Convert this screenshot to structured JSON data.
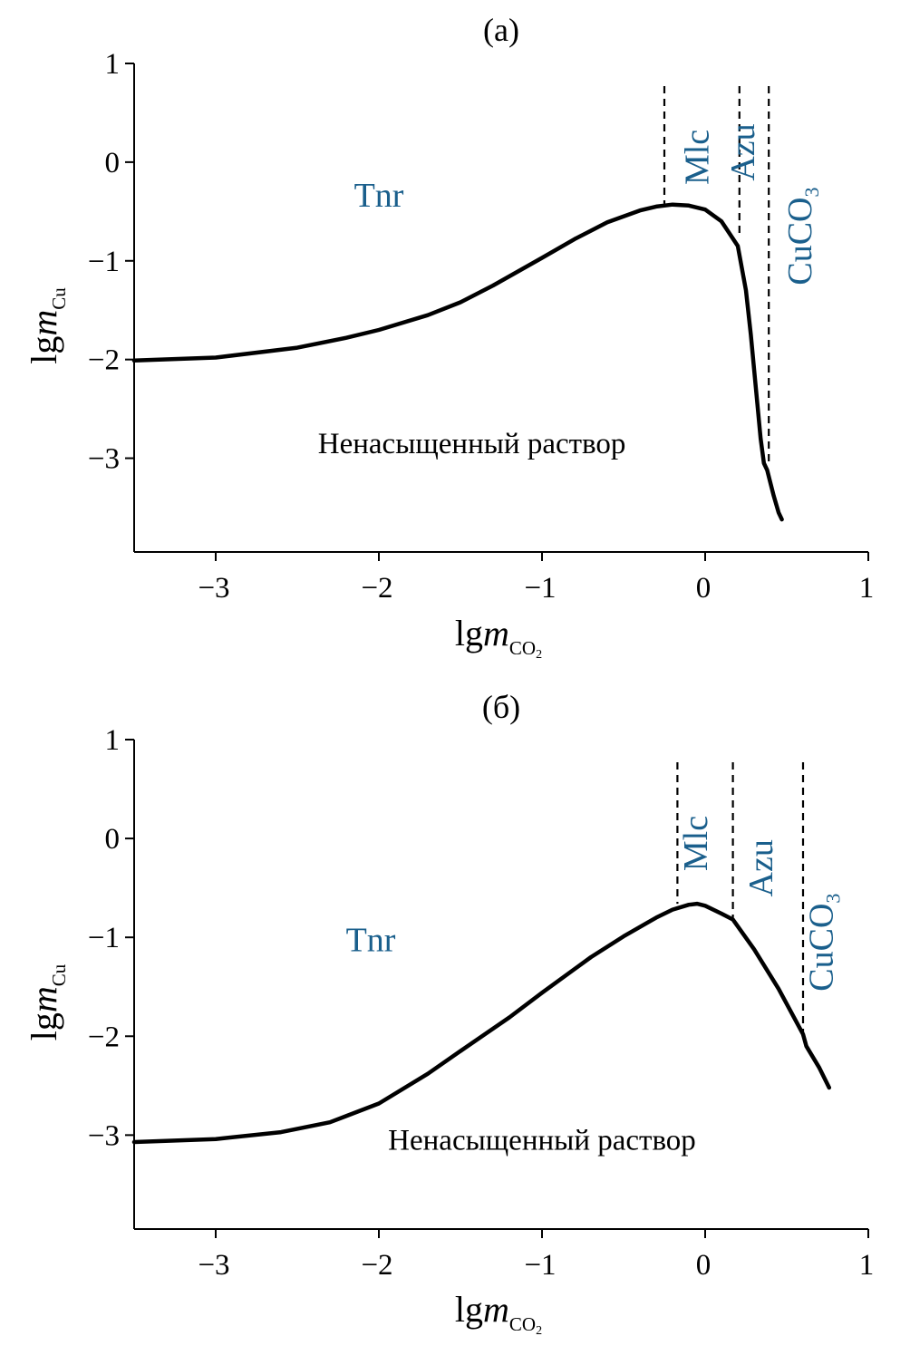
{
  "colors": {
    "curve": "#000000",
    "region_label": "#1a5f8c",
    "axis": "#000000"
  },
  "chart_data": [
    {
      "type": "line",
      "title": "(а)",
      "xlabel": {
        "main": "lg",
        "italic": "m",
        "sub": "CO",
        "subsub": "2"
      },
      "ylabel": {
        "main": "lg",
        "italic": "m",
        "sub": "Cu"
      },
      "xlim": [
        -3.5,
        1
      ],
      "ylim": [
        -3.95,
        1
      ],
      "xticks": [
        -3,
        -2,
        -1,
        0,
        1
      ],
      "xtick_labels": [
        "−3",
        "−2",
        "−1",
        "0",
        "1"
      ],
      "yticks": [
        1,
        0,
        -1,
        -2,
        -3
      ],
      "ytick_labels": [
        "1",
        "0",
        "−1",
        "−2",
        "−3"
      ],
      "series": [
        {
          "x": [
            -3.5,
            -3.0,
            -2.5,
            -2.2,
            -2.0,
            -1.7,
            -1.5,
            -1.3,
            -1.0,
            -0.8,
            -0.6,
            -0.4,
            -0.3,
            -0.2,
            -0.1,
            0.0,
            0.1,
            0.2,
            0.25,
            0.28,
            0.3,
            0.32,
            0.34,
            0.36,
            0.38,
            0.4,
            0.42,
            0.45,
            0.47
          ],
          "y": [
            -2.01,
            -1.98,
            -1.88,
            -1.78,
            -1.7,
            -1.55,
            -1.42,
            -1.25,
            -0.97,
            -0.78,
            -0.61,
            -0.49,
            -0.45,
            -0.43,
            -0.44,
            -0.48,
            -0.6,
            -0.85,
            -1.3,
            -1.75,
            -2.1,
            -2.45,
            -2.8,
            -3.05,
            -3.12,
            -3.25,
            -3.38,
            -3.55,
            -3.62
          ]
        }
      ],
      "boundaries": [
        {
          "x": -0.25,
          "y_bottom": -0.42
        },
        {
          "x": 0.21,
          "y_bottom": -0.72
        },
        {
          "x": 0.39,
          "y_bottom": -3.08
        }
      ],
      "regions": [
        {
          "name": "Tnr",
          "x": -2.0,
          "y": -0.45,
          "rotation": 0
        },
        {
          "name": "Mlc",
          "x": 0.02,
          "y": 0.05,
          "rotation": -90
        },
        {
          "name": "Azu",
          "x": 0.3,
          "y": 0.1,
          "rotation": -90
        },
        {
          "name": "CuCO",
          "name_sub": "3",
          "x": 0.65,
          "y": -0.75,
          "rotation": -90
        }
      ],
      "annotation": {
        "text": "Ненасыщенный раствор",
        "x": -1.43,
        "y": -2.95
      }
    },
    {
      "type": "line",
      "title": "(б)",
      "xlabel": {
        "main": "lg",
        "italic": "m",
        "sub": "CO",
        "subsub": "2"
      },
      "ylabel": {
        "main": "lg",
        "italic": "m",
        "sub": "Cu"
      },
      "xlim": [
        -3.5,
        1
      ],
      "ylim": [
        -3.95,
        1
      ],
      "xticks": [
        -3,
        -2,
        -1,
        0,
        1
      ],
      "xtick_labels": [
        "−3",
        "−2",
        "−1",
        "0",
        "1"
      ],
      "yticks": [
        1,
        0,
        -1,
        -2,
        -3
      ],
      "ytick_labels": [
        "1",
        "0",
        "−1",
        "−2",
        "−3"
      ],
      "series": [
        {
          "x": [
            -3.5,
            -3.0,
            -2.6,
            -2.3,
            -2.0,
            -1.7,
            -1.5,
            -1.2,
            -1.0,
            -0.7,
            -0.5,
            -0.3,
            -0.2,
            -0.1,
            -0.05,
            0.0,
            0.1,
            0.17,
            0.3,
            0.45,
            0.6,
            0.62,
            0.7,
            0.76
          ],
          "y": [
            -3.07,
            -3.04,
            -2.97,
            -2.87,
            -2.68,
            -2.38,
            -2.15,
            -1.81,
            -1.56,
            -1.2,
            -0.99,
            -0.8,
            -0.72,
            -0.67,
            -0.66,
            -0.68,
            -0.76,
            -0.82,
            -1.12,
            -1.52,
            -1.98,
            -2.1,
            -2.32,
            -2.52
          ]
        }
      ],
      "boundaries": [
        {
          "x": -0.17,
          "y_bottom": -0.66
        },
        {
          "x": 0.17,
          "y_bottom": -0.8
        },
        {
          "x": 0.6,
          "y_bottom": -1.98
        }
      ],
      "regions": [
        {
          "name": "Tnr",
          "x": -2.05,
          "y": -1.14,
          "rotation": 0
        },
        {
          "name": "Mlc",
          "x": 0.01,
          "y": -0.05,
          "rotation": -90
        },
        {
          "name": "Azu",
          "x": 0.41,
          "y": -0.3,
          "rotation": -90
        },
        {
          "name": "CuCO",
          "name_sub": "3",
          "x": 0.78,
          "y": -1.05,
          "rotation": -90
        }
      ],
      "annotation": {
        "text": "Ненасыщенный раствор",
        "x": -1.0,
        "y": -3.15
      }
    }
  ]
}
